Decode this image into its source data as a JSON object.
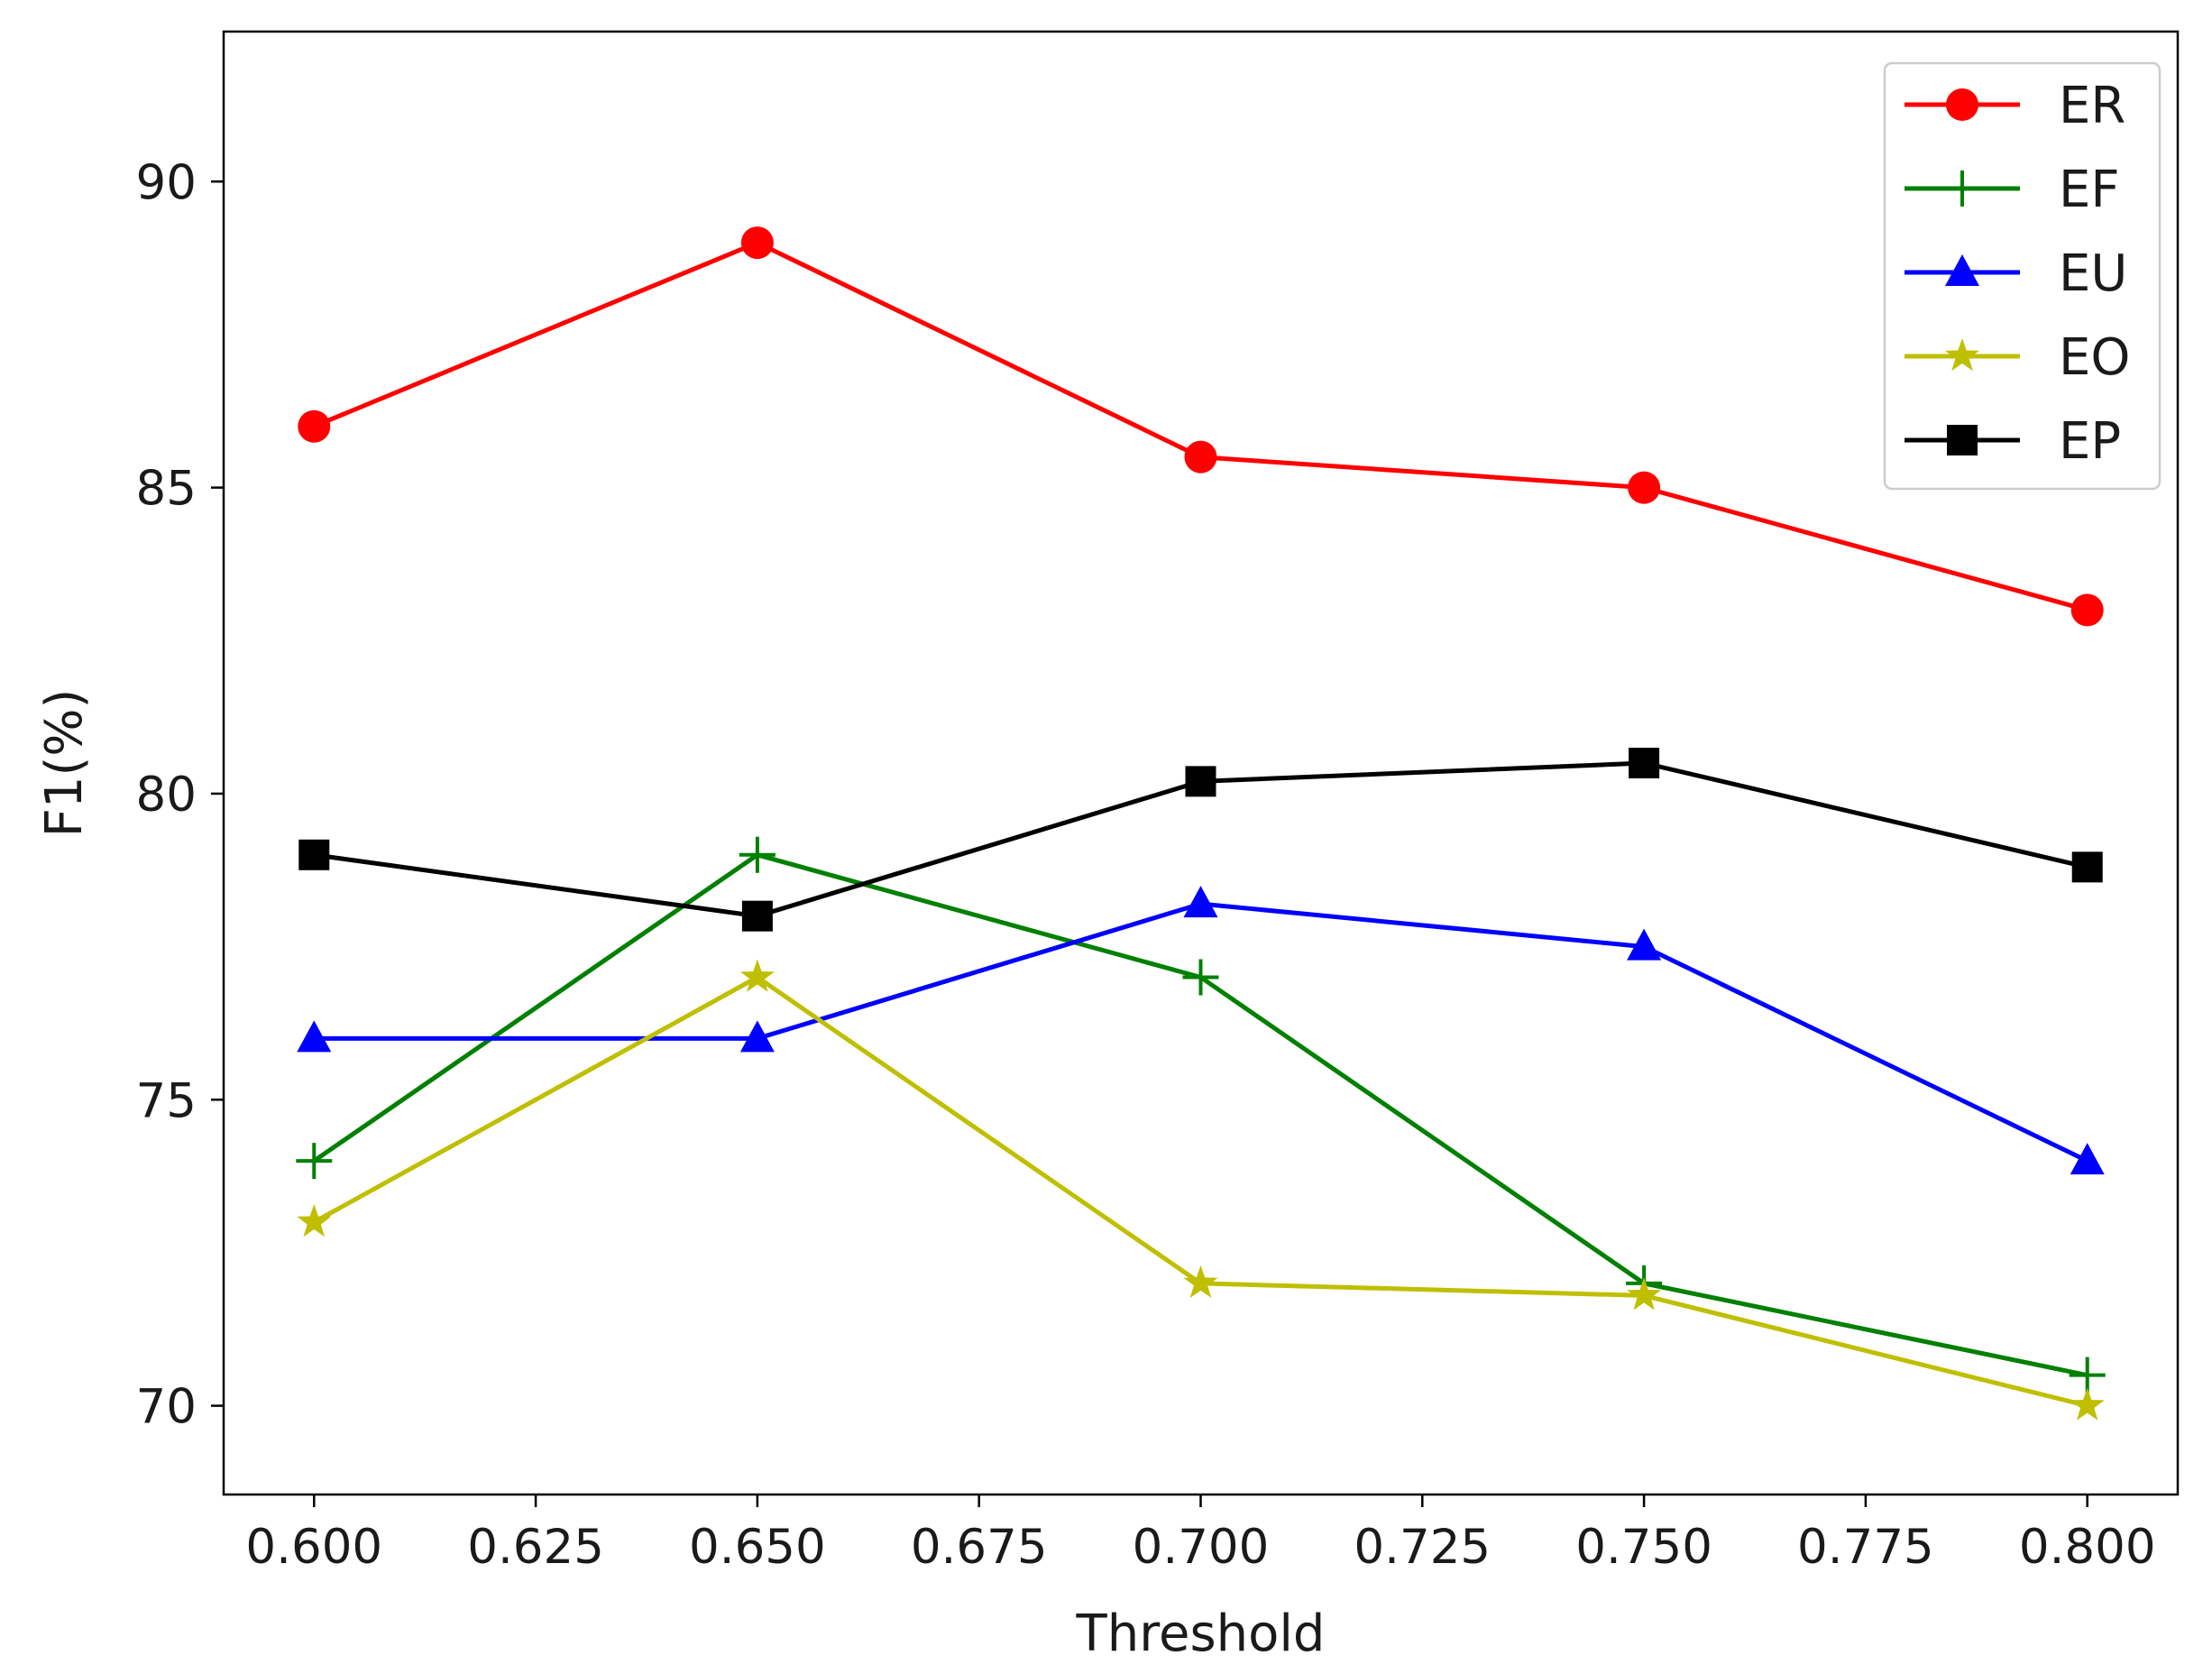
{
  "chart_data": {
    "type": "line",
    "title": "",
    "xlabel": "Threshold",
    "ylabel": "F1(%)",
    "xlim": [
      0.5898,
      0.8102
    ],
    "ylim": [
      68.55,
      92.45
    ],
    "x_ticks": [
      "0.600",
      "0.625",
      "0.650",
      "0.675",
      "0.700",
      "0.725",
      "0.750",
      "0.775",
      "0.800"
    ],
    "y_ticks": [
      "70",
      "75",
      "80",
      "85",
      "90"
    ],
    "grid": false,
    "legend_position": "top-right",
    "x": [
      0.6,
      0.65,
      0.7,
      0.75,
      0.8
    ],
    "series": [
      {
        "name": "ER",
        "color": "#ff0000",
        "marker": "circle",
        "values": [
          86.0,
          89.0,
          85.5,
          85.0,
          83.0
        ]
      },
      {
        "name": "EF",
        "color": "#008000",
        "marker": "plus",
        "values": [
          74.0,
          79.0,
          77.0,
          72.0,
          70.5
        ]
      },
      {
        "name": "EU",
        "color": "#0000ff",
        "marker": "triangle",
        "values": [
          76.0,
          76.0,
          78.2,
          77.5,
          74.0
        ]
      },
      {
        "name": "EO",
        "color": "#bfbf00",
        "marker": "star",
        "values": [
          73.0,
          77.0,
          72.0,
          71.8,
          70.0
        ]
      },
      {
        "name": "EP",
        "color": "#000000",
        "marker": "square",
        "values": [
          79.0,
          78.0,
          80.2,
          80.5,
          78.8
        ]
      }
    ]
  }
}
